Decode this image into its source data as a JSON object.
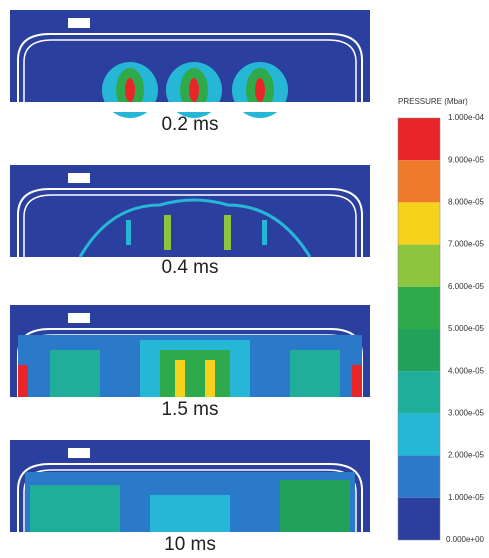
{
  "panels": [
    {
      "label": "0.2 ms"
    },
    {
      "label": "0.4 ms"
    },
    {
      "label": "1.5 ms"
    },
    {
      "label": "10 ms"
    }
  ],
  "legend": {
    "title": "PRESSURE (Mbar)",
    "labels": [
      "1.000e-04",
      "9.000e-05",
      "8.000e-05",
      "7.000e-05",
      "6.000e-05",
      "5.000e-05",
      "4.000e-05",
      "3.000e-05",
      "2.000e-05",
      "1.000e-05",
      "0.000e+00"
    ],
    "colors": [
      "#e8262a",
      "#ef7a2c",
      "#f7d21c",
      "#8cc63f",
      "#2faa4a",
      "#22a15a",
      "#1fae9a",
      "#27b7d6",
      "#2b79c9",
      "#2a3f9e"
    ]
  }
}
